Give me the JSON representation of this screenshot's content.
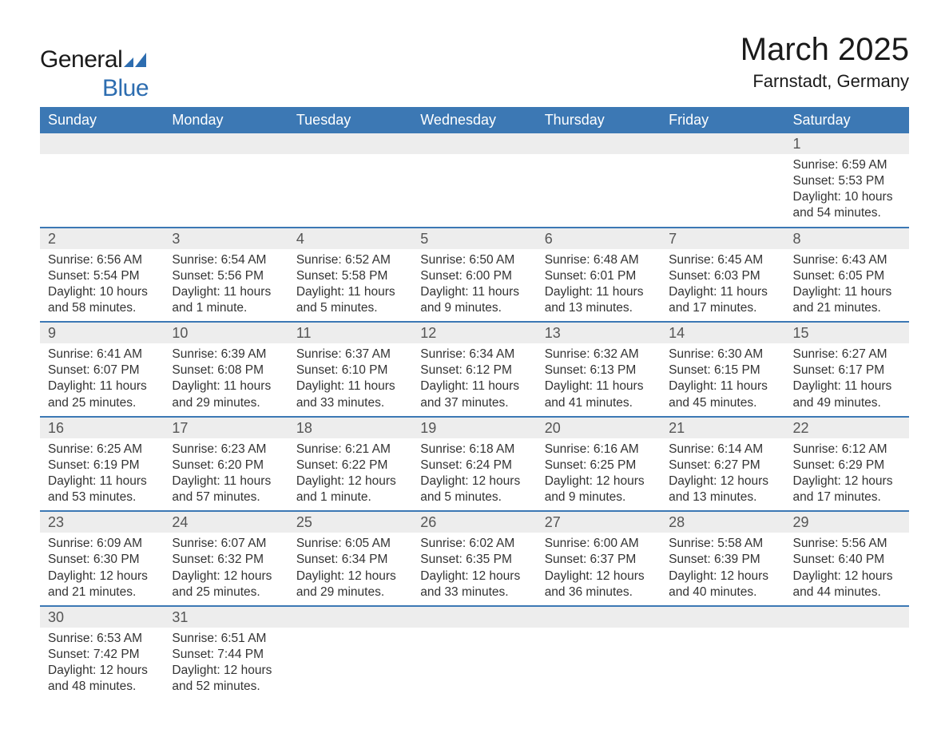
{
  "logo": {
    "text_dark": "General",
    "text_blue": "Blue"
  },
  "title": "March 2025",
  "subtitle": "Farnstadt, Germany",
  "colors": {
    "header_bg": "#3c78b4",
    "header_text": "#ffffff",
    "daynum_bg": "#ededed",
    "row_divider": "#3c78b4",
    "body_text": "#333333",
    "title_text": "#1a1a1a",
    "logo_blue": "#2d6db0"
  },
  "typography": {
    "title_fontsize": 40,
    "subtitle_fontsize": 22,
    "header_fontsize": 18,
    "daynum_fontsize": 18,
    "body_fontsize": 15.5
  },
  "weekdays": [
    "Sunday",
    "Monday",
    "Tuesday",
    "Wednesday",
    "Thursday",
    "Friday",
    "Saturday"
  ],
  "calendar": {
    "type": "table",
    "columns": 7,
    "weeks": [
      [
        null,
        null,
        null,
        null,
        null,
        null,
        {
          "day": "1",
          "sunrise": "Sunrise: 6:59 AM",
          "sunset": "Sunset: 5:53 PM",
          "daylight": "Daylight: 10 hours and 54 minutes."
        }
      ],
      [
        {
          "day": "2",
          "sunrise": "Sunrise: 6:56 AM",
          "sunset": "Sunset: 5:54 PM",
          "daylight": "Daylight: 10 hours and 58 minutes."
        },
        {
          "day": "3",
          "sunrise": "Sunrise: 6:54 AM",
          "sunset": "Sunset: 5:56 PM",
          "daylight": "Daylight: 11 hours and 1 minute."
        },
        {
          "day": "4",
          "sunrise": "Sunrise: 6:52 AM",
          "sunset": "Sunset: 5:58 PM",
          "daylight": "Daylight: 11 hours and 5 minutes."
        },
        {
          "day": "5",
          "sunrise": "Sunrise: 6:50 AM",
          "sunset": "Sunset: 6:00 PM",
          "daylight": "Daylight: 11 hours and 9 minutes."
        },
        {
          "day": "6",
          "sunrise": "Sunrise: 6:48 AM",
          "sunset": "Sunset: 6:01 PM",
          "daylight": "Daylight: 11 hours and 13 minutes."
        },
        {
          "day": "7",
          "sunrise": "Sunrise: 6:45 AM",
          "sunset": "Sunset: 6:03 PM",
          "daylight": "Daylight: 11 hours and 17 minutes."
        },
        {
          "day": "8",
          "sunrise": "Sunrise: 6:43 AM",
          "sunset": "Sunset: 6:05 PM",
          "daylight": "Daylight: 11 hours and 21 minutes."
        }
      ],
      [
        {
          "day": "9",
          "sunrise": "Sunrise: 6:41 AM",
          "sunset": "Sunset: 6:07 PM",
          "daylight": "Daylight: 11 hours and 25 minutes."
        },
        {
          "day": "10",
          "sunrise": "Sunrise: 6:39 AM",
          "sunset": "Sunset: 6:08 PM",
          "daylight": "Daylight: 11 hours and 29 minutes."
        },
        {
          "day": "11",
          "sunrise": "Sunrise: 6:37 AM",
          "sunset": "Sunset: 6:10 PM",
          "daylight": "Daylight: 11 hours and 33 minutes."
        },
        {
          "day": "12",
          "sunrise": "Sunrise: 6:34 AM",
          "sunset": "Sunset: 6:12 PM",
          "daylight": "Daylight: 11 hours and 37 minutes."
        },
        {
          "day": "13",
          "sunrise": "Sunrise: 6:32 AM",
          "sunset": "Sunset: 6:13 PM",
          "daylight": "Daylight: 11 hours and 41 minutes."
        },
        {
          "day": "14",
          "sunrise": "Sunrise: 6:30 AM",
          "sunset": "Sunset: 6:15 PM",
          "daylight": "Daylight: 11 hours and 45 minutes."
        },
        {
          "day": "15",
          "sunrise": "Sunrise: 6:27 AM",
          "sunset": "Sunset: 6:17 PM",
          "daylight": "Daylight: 11 hours and 49 minutes."
        }
      ],
      [
        {
          "day": "16",
          "sunrise": "Sunrise: 6:25 AM",
          "sunset": "Sunset: 6:19 PM",
          "daylight": "Daylight: 11 hours and 53 minutes."
        },
        {
          "day": "17",
          "sunrise": "Sunrise: 6:23 AM",
          "sunset": "Sunset: 6:20 PM",
          "daylight": "Daylight: 11 hours and 57 minutes."
        },
        {
          "day": "18",
          "sunrise": "Sunrise: 6:21 AM",
          "sunset": "Sunset: 6:22 PM",
          "daylight": "Daylight: 12 hours and 1 minute."
        },
        {
          "day": "19",
          "sunrise": "Sunrise: 6:18 AM",
          "sunset": "Sunset: 6:24 PM",
          "daylight": "Daylight: 12 hours and 5 minutes."
        },
        {
          "day": "20",
          "sunrise": "Sunrise: 6:16 AM",
          "sunset": "Sunset: 6:25 PM",
          "daylight": "Daylight: 12 hours and 9 minutes."
        },
        {
          "day": "21",
          "sunrise": "Sunrise: 6:14 AM",
          "sunset": "Sunset: 6:27 PM",
          "daylight": "Daylight: 12 hours and 13 minutes."
        },
        {
          "day": "22",
          "sunrise": "Sunrise: 6:12 AM",
          "sunset": "Sunset: 6:29 PM",
          "daylight": "Daylight: 12 hours and 17 minutes."
        }
      ],
      [
        {
          "day": "23",
          "sunrise": "Sunrise: 6:09 AM",
          "sunset": "Sunset: 6:30 PM",
          "daylight": "Daylight: 12 hours and 21 minutes."
        },
        {
          "day": "24",
          "sunrise": "Sunrise: 6:07 AM",
          "sunset": "Sunset: 6:32 PM",
          "daylight": "Daylight: 12 hours and 25 minutes."
        },
        {
          "day": "25",
          "sunrise": "Sunrise: 6:05 AM",
          "sunset": "Sunset: 6:34 PM",
          "daylight": "Daylight: 12 hours and 29 minutes."
        },
        {
          "day": "26",
          "sunrise": "Sunrise: 6:02 AM",
          "sunset": "Sunset: 6:35 PM",
          "daylight": "Daylight: 12 hours and 33 minutes."
        },
        {
          "day": "27",
          "sunrise": "Sunrise: 6:00 AM",
          "sunset": "Sunset: 6:37 PM",
          "daylight": "Daylight: 12 hours and 36 minutes."
        },
        {
          "day": "28",
          "sunrise": "Sunrise: 5:58 AM",
          "sunset": "Sunset: 6:39 PM",
          "daylight": "Daylight: 12 hours and 40 minutes."
        },
        {
          "day": "29",
          "sunrise": "Sunrise: 5:56 AM",
          "sunset": "Sunset: 6:40 PM",
          "daylight": "Daylight: 12 hours and 44 minutes."
        }
      ],
      [
        {
          "day": "30",
          "sunrise": "Sunrise: 6:53 AM",
          "sunset": "Sunset: 7:42 PM",
          "daylight": "Daylight: 12 hours and 48 minutes."
        },
        {
          "day": "31",
          "sunrise": "Sunrise: 6:51 AM",
          "sunset": "Sunset: 7:44 PM",
          "daylight": "Daylight: 12 hours and 52 minutes."
        },
        null,
        null,
        null,
        null,
        null
      ]
    ]
  }
}
